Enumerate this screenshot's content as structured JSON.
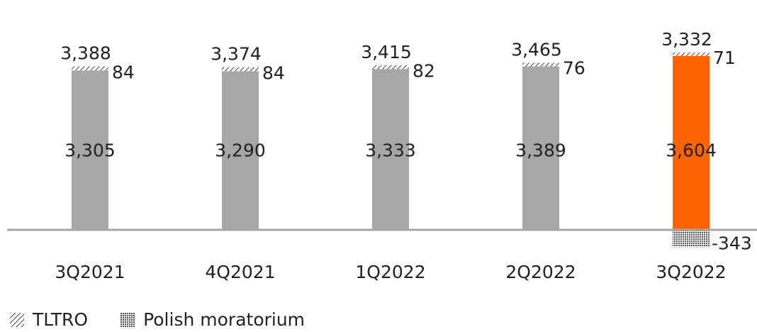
{
  "chart_data": {
    "type": "bar",
    "stacked": true,
    "categories": [
      "3Q2021",
      "4Q2021",
      "1Q2022",
      "2Q2022",
      "3Q2022"
    ],
    "series": [
      {
        "name": "",
        "values": [
          3305,
          3290,
          3333,
          3389,
          3604
        ],
        "colors": [
          "#a6a6a6",
          "#a6a6a6",
          "#a6a6a6",
          "#a6a6a6",
          "#ff6200"
        ]
      },
      {
        "name": "TLTRO",
        "values": [
          84,
          84,
          82,
          76,
          71
        ]
      },
      {
        "name": "Polish moratorium",
        "values": [
          0,
          0,
          0,
          0,
          -343
        ]
      }
    ],
    "base_labels": [
      "3,305",
      "3,290",
      "3,333",
      "3,389",
      "3,604"
    ],
    "increment_labels": [
      "84",
      "84",
      "82",
      "76",
      "71"
    ],
    "moratorium_label": "-343",
    "total_labels": [
      "3,388",
      "3,374",
      "3,415",
      "3,465",
      "3,332"
    ],
    "legend": {
      "position": "bottom-left"
    },
    "grid": false
  }
}
